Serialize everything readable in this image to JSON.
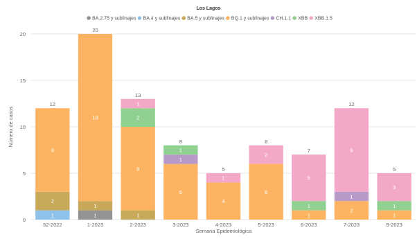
{
  "chart_data": {
    "type": "bar",
    "stacked": true,
    "title": "Los Lagos",
    "xlabel": "Semana Epidemiológica",
    "ylabel": "Número de casos",
    "ylim": [
      0,
      20
    ],
    "yticks": [
      0,
      5,
      10,
      15,
      20
    ],
    "grid": true,
    "legend_position": "top",
    "categories": [
      "52-2022",
      "1-2023",
      "2-2023",
      "3-2023",
      "4-2023",
      "5-2023",
      "6-2023",
      "7-2023",
      "8-2023"
    ],
    "totals": [
      12,
      20,
      13,
      8,
      5,
      8,
      7,
      12,
      5
    ],
    "series": [
      {
        "name": "BA.2.75 y sublinajes",
        "color": "#939393",
        "values": [
          0,
          1,
          0,
          0,
          0,
          0,
          0,
          0,
          0
        ]
      },
      {
        "name": "BA.4 y sublinajes",
        "color": "#8fc2ea",
        "values": [
          1,
          0,
          0,
          0,
          0,
          0,
          0,
          0,
          0
        ]
      },
      {
        "name": "BA.5 y sublinajes",
        "color": "#c8a95a",
        "values": [
          2,
          1,
          1,
          0,
          0,
          0,
          0,
          0,
          0
        ]
      },
      {
        "name": "BQ.1 y sublinajes",
        "color": "#fdb462",
        "values": [
          9,
          18,
          9,
          6,
          4,
          6,
          1,
          2,
          1
        ]
      },
      {
        "name": "CH.1.1",
        "color": "#b79ac8",
        "values": [
          0,
          0,
          0,
          1,
          0,
          0,
          0,
          1,
          0
        ]
      },
      {
        "name": "XBB",
        "color": "#90d090",
        "values": [
          0,
          0,
          2,
          1,
          0,
          0,
          1,
          0,
          1
        ]
      },
      {
        "name": "XBB.1.5",
        "color": "#f4a8c8",
        "values": [
          0,
          0,
          1,
          0,
          1,
          2,
          5,
          9,
          3
        ]
      }
    ]
  }
}
